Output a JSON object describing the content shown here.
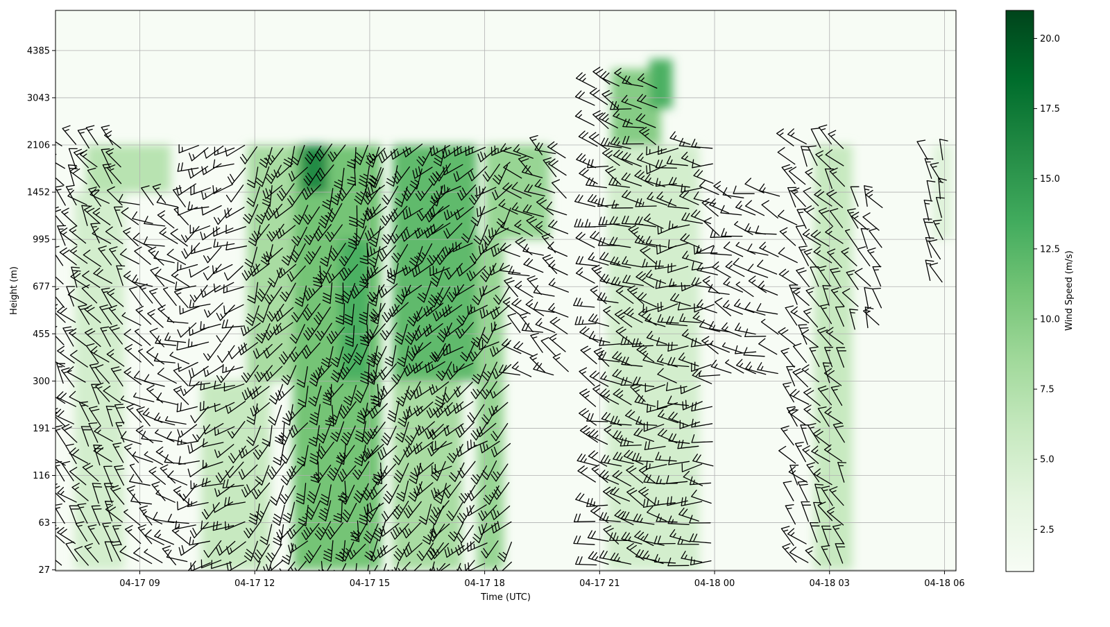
{
  "chart_data": {
    "type": "heatmap",
    "title": "",
    "xlabel": "Time (UTC)",
    "ylabel": "Height (m)",
    "x_ticks": [
      "04-17 09",
      "04-17 12",
      "04-17 15",
      "04-17 18",
      "04-17 21",
      "04-18 00",
      "04-18 03",
      "04-18 06"
    ],
    "x_tick_hours": [
      9,
      12,
      15,
      18,
      21,
      24,
      27,
      30
    ],
    "x_range_hours": [
      6.8,
      30.3
    ],
    "y_ticks": [
      "27",
      "63",
      "116",
      "191",
      "300",
      "455",
      "677",
      "995",
      "1452",
      "2106",
      "3043",
      "4385"
    ],
    "y_tick_values": [
      27,
      63,
      116,
      191,
      300,
      455,
      677,
      995,
      1452,
      2106,
      3043,
      4385
    ],
    "y_range_levels": [
      -0.02,
      11.85
    ],
    "colorbar": {
      "label": "Wind Speed (m/s)",
      "colormap": "Greens",
      "range": [
        1,
        21
      ],
      "ticks": [
        "2.5",
        "5.0",
        "7.5",
        "10.0",
        "12.5",
        "15.0",
        "17.5",
        "20.0"
      ],
      "tick_values": [
        2.5,
        5.0,
        7.5,
        10.0,
        12.5,
        15.0,
        17.5,
        20.0
      ]
    },
    "grid": true,
    "overlay": "wind barbs",
    "speed_regions": [
      {
        "t": [
          7.6,
          9.8
        ],
        "z": [
          1452,
          2106
        ],
        "speed": 7
      },
      {
        "t": [
          7.3,
          8.6
        ],
        "z": [
          27,
          1452
        ],
        "speed": 5
      },
      {
        "t": [
          10.6,
          12.4
        ],
        "z": [
          27,
          300
        ],
        "speed": 6
      },
      {
        "t": [
          11.8,
          13.0
        ],
        "z": [
          300,
          2106
        ],
        "speed": 8
      },
      {
        "t": [
          13.0,
          15.3
        ],
        "z": [
          27,
          2106
        ],
        "speed": 11
      },
      {
        "t": [
          14.2,
          15.0
        ],
        "z": [
          300,
          995
        ],
        "speed": 13
      },
      {
        "t": [
          13.2,
          13.9
        ],
        "z": [
          1452,
          2106
        ],
        "speed": 16
      },
      {
        "t": [
          15.6,
          17.8
        ],
        "z": [
          300,
          2106
        ],
        "speed": 12
      },
      {
        "t": [
          15.6,
          17.4
        ],
        "z": [
          27,
          300
        ],
        "speed": 8
      },
      {
        "t": [
          17.8,
          18.5
        ],
        "z": [
          27,
          995
        ],
        "speed": 9
      },
      {
        "t": [
          18.0,
          19.7
        ],
        "z": [
          995,
          2106
        ],
        "speed": 9
      },
      {
        "t": [
          21.3,
          22.6
        ],
        "z": [
          2106,
          3800
        ],
        "speed": 10
      },
      {
        "t": [
          22.3,
          22.9
        ],
        "z": [
          2800,
          4100
        ],
        "speed": 13
      },
      {
        "t": [
          21.2,
          23.6
        ],
        "z": [
          27,
          2106
        ],
        "speed": 5
      },
      {
        "t": [
          26.6,
          27.6
        ],
        "z": [
          27,
          2106
        ],
        "speed": 6
      },
      {
        "t": [
          29.7,
          30.2
        ],
        "z": [
          995,
          2106
        ],
        "speed": 4
      }
    ],
    "barb_blocks": [
      {
        "t": [
          6.9,
          8.6
        ],
        "z": [
          27,
          2106
        ],
        "dir": 320,
        "speed": 8
      },
      {
        "t": [
          8.9,
          10.3
        ],
        "z": [
          27,
          1452
        ],
        "dir": 300,
        "speed": 6
      },
      {
        "t": [
          10.4,
          12.0
        ],
        "z": [
          27,
          2106
        ],
        "dir": 240,
        "speed": 7
      },
      {
        "t": [
          12.0,
          13.6
        ],
        "z": [
          27,
          2106
        ],
        "dir": 210,
        "speed": 12
      },
      {
        "t": [
          13.6,
          15.3
        ],
        "z": [
          27,
          2106
        ],
        "dir": 200,
        "speed": 15
      },
      {
        "t": [
          15.3,
          17.0
        ],
        "z": [
          27,
          2106
        ],
        "dir": 215,
        "speed": 14
      },
      {
        "t": [
          17.0,
          18.8
        ],
        "z": [
          27,
          2106
        ],
        "dir": 225,
        "speed": 12
      },
      {
        "t": [
          18.8,
          20.3
        ],
        "z": [
          300,
          2106
        ],
        "dir": 300,
        "speed": 8
      },
      {
        "t": [
          20.8,
          22.6
        ],
        "z": [
          27,
          3600
        ],
        "dir": 290,
        "speed": 11
      },
      {
        "t": [
          22.6,
          24.0
        ],
        "z": [
          27,
          2106
        ],
        "dir": 270,
        "speed": 8
      },
      {
        "t": [
          24.0,
          25.8
        ],
        "z": [
          300,
          1452
        ],
        "dir": 290,
        "speed": 6
      },
      {
        "t": [
          26.0,
          27.6
        ],
        "z": [
          27,
          2106
        ],
        "dir": 320,
        "speed": 8
      },
      {
        "t": [
          27.6,
          28.6
        ],
        "z": [
          455,
          1452
        ],
        "dir": 330,
        "speed": 6
      },
      {
        "t": [
          29.5,
          30.1
        ],
        "z": [
          677,
          2106
        ],
        "dir": 340,
        "speed": 7
      }
    ]
  }
}
